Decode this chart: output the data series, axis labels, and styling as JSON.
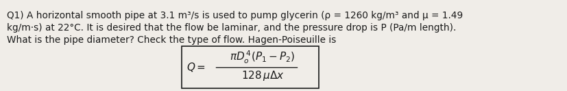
{
  "text_line1": "Q1) A horizontal smooth pipe at 3.1 m³/s is used to pump glycerin (ρ = 1260 kg/m³ and μ = 1.49",
  "text_line2": "kg/m·s) at 22°C. It is desired that the flow be laminar, and the pressure drop is P (Pa/m length).",
  "text_line3": "What is the pipe diameter? Check the type of flow. Hagen-Poiseuille is",
  "formula_lhs": "$Q=$",
  "formula_numerator": "$\\pi D_o^{\\,4}(P_1-P_2)$",
  "formula_denominator": "$128\\,\\mu\\Delta x$",
  "text_color": "#1a1a1a",
  "bg_color": "#f0ede8",
  "box_color": "#1a1a1a",
  "font_size_main": 9.8,
  "font_size_formula": 11.0,
  "figwidth": 8.28,
  "figheight": 1.34,
  "dpi": 100
}
